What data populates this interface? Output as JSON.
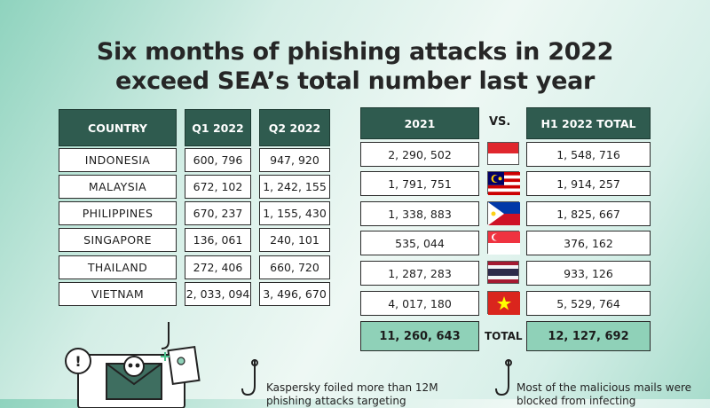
{
  "title": {
    "line1": "Six months of phishing attacks in 2022",
    "line2": "exceed SEA’s total number last year"
  },
  "left_table": {
    "headers": [
      "COUNTRY",
      "Q1 2022",
      "Q2 2022"
    ],
    "rows": [
      {
        "country": "INDONESIA",
        "q1": "600, 796",
        "q2": "947, 920"
      },
      {
        "country": "MALAYSIA",
        "q1": "672, 102",
        "q2": "1, 242, 155"
      },
      {
        "country": "PHILIPPINES",
        "q1": "670, 237",
        "q2": "1, 155, 430"
      },
      {
        "country": "SINGAPORE",
        "q1": "136, 061",
        "q2": "240, 101"
      },
      {
        "country": "THAILAND",
        "q1": "272, 406",
        "q2": "660, 720"
      },
      {
        "country": "VIETNAM",
        "q1": "2, 033, 094",
        "q2": "3, 496, 670"
      }
    ]
  },
  "right_table": {
    "header_2021": "2021",
    "vs_label": "VS.",
    "header_h1": "H1 2022 TOTAL",
    "rows": [
      {
        "y2021": "2, 290, 502",
        "h1": "1, 548, 716",
        "flag": "indonesia-flag"
      },
      {
        "y2021": "1, 791, 751",
        "h1": "1, 914, 257",
        "flag": "malaysia-flag"
      },
      {
        "y2021": "1, 338, 883",
        "h1": "1, 825, 667",
        "flag": "philippines-flag"
      },
      {
        "y2021": "535, 044",
        "h1": "376, 162",
        "flag": "singapore-flag"
      },
      {
        "y2021": "1, 287, 283",
        "h1": "933, 126",
        "flag": "thailand-flag"
      },
      {
        "y2021": "4, 017, 180",
        "h1": "5, 529, 764",
        "flag": "vietnam-flag"
      }
    ],
    "total_2021": "11, 260, 643",
    "total_label": "TOTAL",
    "total_h1": "12, 127, 692"
  },
  "captions": {
    "left": "Kaspersky foiled more than 12M phishing attacks targeting",
    "right": "Most of the malicious mails were blocked from infecting"
  },
  "colors": {
    "header_bg": "#2f5b4f",
    "total_bg": "#8fd1b8"
  }
}
